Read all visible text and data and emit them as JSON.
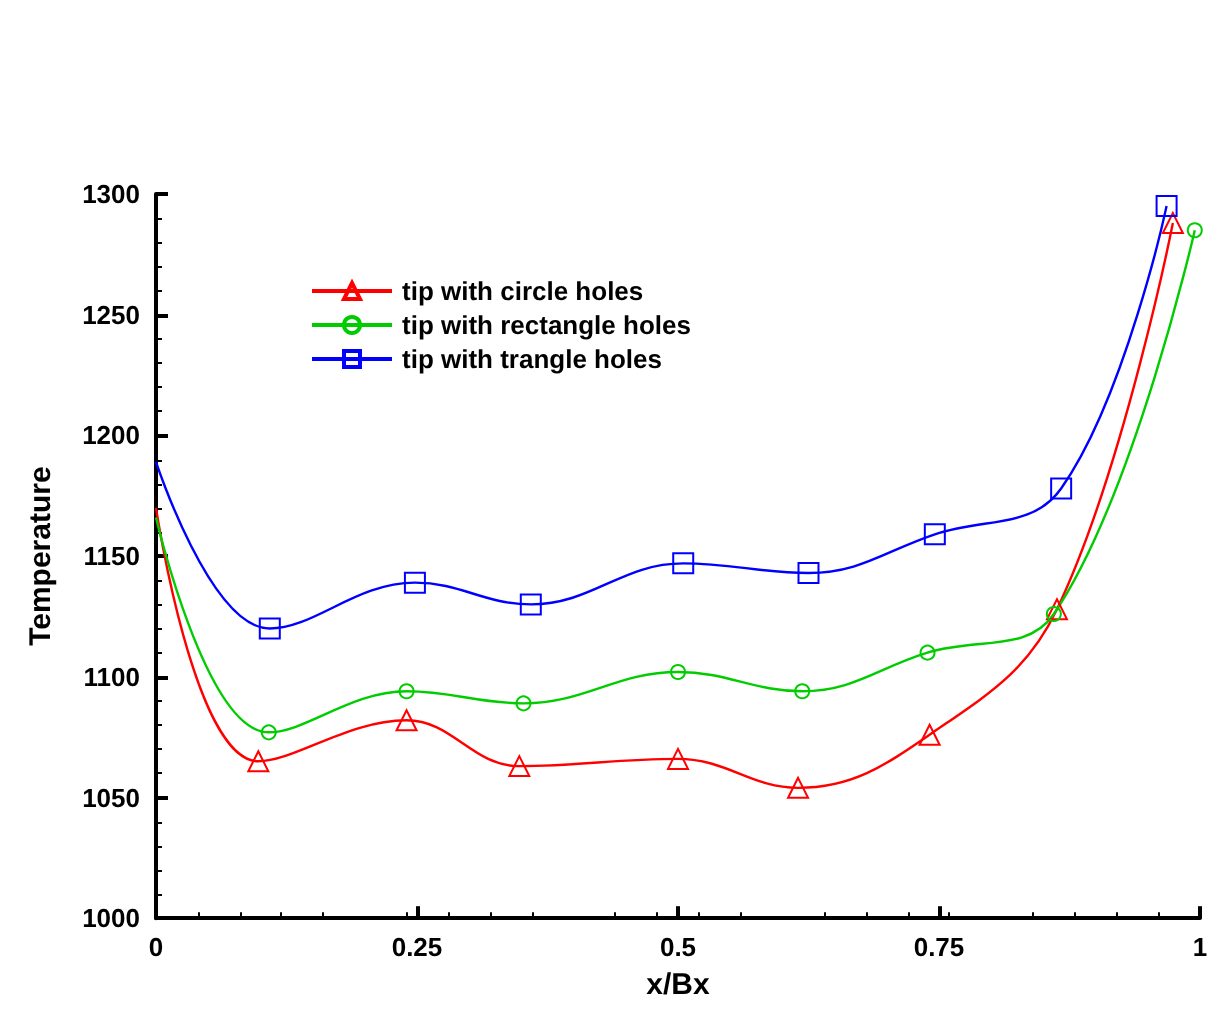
{
  "chart_data": {
    "type": "line",
    "xlabel": "x/Bx",
    "ylabel": "Temperature",
    "xlim": [
      0,
      1
    ],
    "ylim": [
      1000,
      1300
    ],
    "xticks": [
      0,
      0.25,
      0.5,
      0.75,
      1
    ],
    "yticks": [
      1000,
      1050,
      1100,
      1150,
      1200,
      1250,
      1300
    ],
    "grid": false,
    "legend": "top left",
    "line_style": "solid",
    "series": [
      {
        "name": "tip with circle holes",
        "color": "#ff0000",
        "marker": "triangle",
        "x": [
          0,
          0.098,
          0.24,
          0.348,
          0.5,
          0.615,
          0.741,
          0.863,
          0.974
        ],
        "values": [
          1170,
          1065,
          1082,
          1063,
          1066,
          1054,
          1076,
          1128,
          1288
        ]
      },
      {
        "name": "tip with rectangle holes",
        "color": "#00cc00",
        "marker": "circle",
        "x": [
          0,
          0.108,
          0.24,
          0.352,
          0.5,
          0.619,
          0.739,
          0.86,
          0.995
        ],
        "values": [
          1166,
          1077,
          1094,
          1089,
          1102,
          1094,
          1110,
          1126,
          1285
        ]
      },
      {
        "name": "tip with trangle holes",
        "color": "#0000ff",
        "marker": "square",
        "x": [
          0,
          0.109,
          0.248,
          0.359,
          0.505,
          0.625,
          0.746,
          0.867,
          0.968
        ],
        "values": [
          1189,
          1120,
          1139,
          1130,
          1147,
          1143,
          1159,
          1178,
          1295
        ]
      }
    ]
  }
}
